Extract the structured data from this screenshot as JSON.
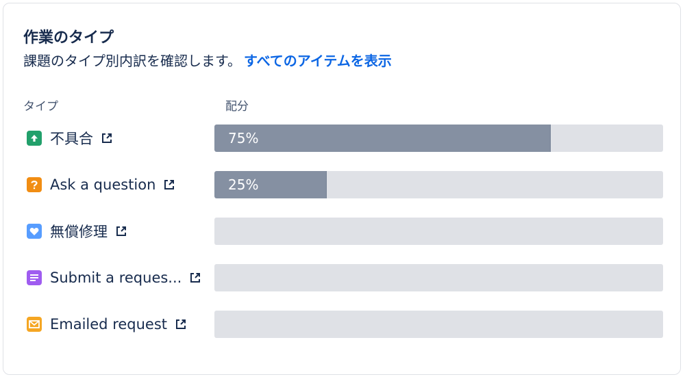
{
  "card": {
    "title": "作業のタイプ",
    "subtitle": "課題のタイプ別内訳を確認します。",
    "link_label": "すべてのアイテムを表示"
  },
  "columns": {
    "type": "タイプ",
    "distribution": "配分"
  },
  "rows": [
    {
      "name": "不具合",
      "icon": "arrow-up-icon",
      "icon_color": "#22a06b",
      "percent": 75,
      "percent_label": "75%"
    },
    {
      "name": "Ask a question",
      "icon": "question-icon",
      "icon_color": "#f18d13",
      "percent": 25,
      "percent_label": "25%"
    },
    {
      "name": "無償修理",
      "icon": "heart-icon",
      "icon_color": "#579dff",
      "percent": 0,
      "percent_label": ""
    },
    {
      "name": "Submit a reques...",
      "icon": "document-icon",
      "icon_color": "#9f5cf0",
      "percent": 0,
      "percent_label": ""
    },
    {
      "name": "Emailed request",
      "icon": "mail-icon",
      "icon_color": "#f5a623",
      "percent": 0,
      "percent_label": ""
    }
  ],
  "colors": {
    "link": "#0c66e4",
    "bar_fill": "#8590a2",
    "bar_track": "#dfe1e6"
  }
}
